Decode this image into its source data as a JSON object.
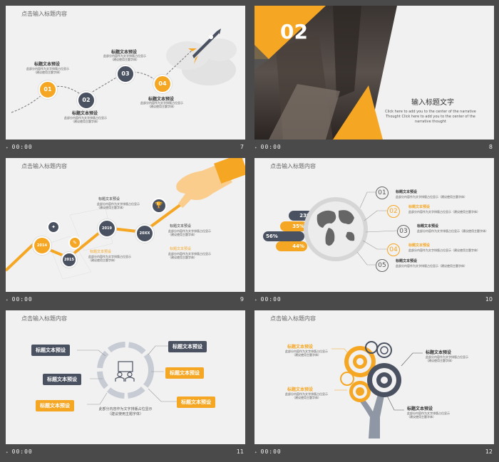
{
  "common": {
    "placeholder_title": "点击输入标题内容",
    "time": "00:00",
    "item_title": "标题文本预设",
    "item_desc_a": "此部分内容作为文字排版占位显示",
    "item_desc_b": "（建议使用主题字体）",
    "item_desc_combined": "此部分内容作为文字排版占位显示（建议使用主题字体）"
  },
  "slides": [
    {
      "num": "7",
      "steps": [
        "01",
        "02",
        "03",
        "04"
      ]
    },
    {
      "num": "8",
      "big_number": "02",
      "heading": "输入标题文字",
      "body": "Click here to add  you to the center of the narrative Thought  Click here to add  you to the center of the narrative thought"
    },
    {
      "num": "9",
      "years": [
        "2014",
        "2015",
        "2019",
        "20XX"
      ]
    },
    {
      "num": "10",
      "percents": [
        "23%",
        "35%",
        "56%",
        "44%"
      ],
      "items": [
        "01",
        "02",
        "03",
        "04",
        "05"
      ]
    },
    {
      "num": "11"
    },
    {
      "num": "12"
    }
  ],
  "colors": {
    "accent": "#f5a623",
    "dark": "#4a5160",
    "bg": "#4a4a4a",
    "slide": "#f1f1f1"
  },
  "icons": [
    "rocket-icon",
    "trophy-icon",
    "globe-icon",
    "presenter-icon",
    "hand-icon"
  ]
}
